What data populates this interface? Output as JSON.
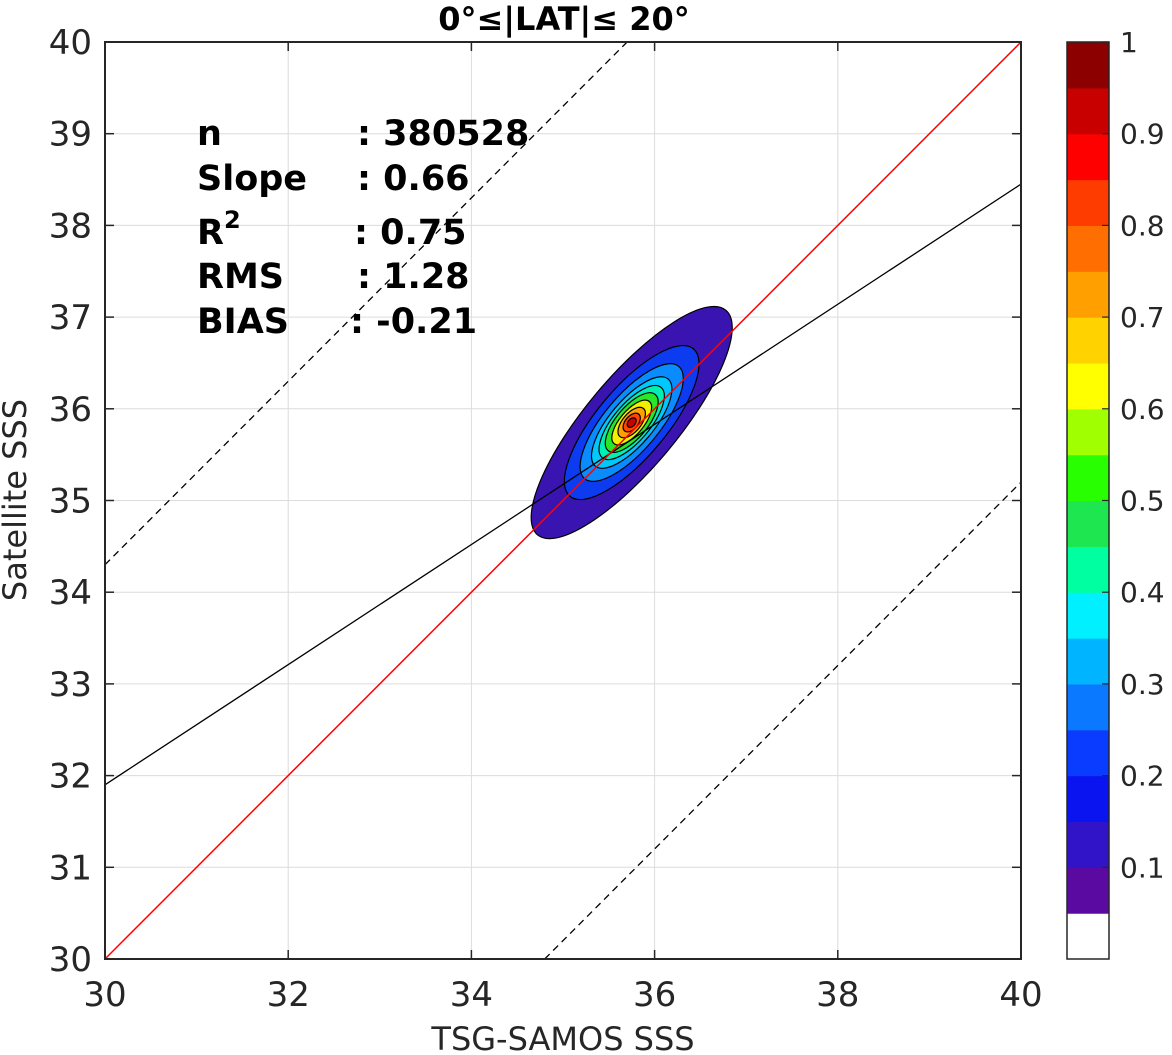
{
  "chart_data": {
    "type": "contour",
    "title": "0°≤|LAT|≤ 20°",
    "xlabel": "TSG-SAMOS SSS",
    "ylabel": "Satellite SSS",
    "xlim": [
      30,
      40
    ],
    "ylim": [
      30,
      40
    ],
    "xticks": [
      "30",
      "32",
      "34",
      "36",
      "38",
      "40"
    ],
    "yticks": [
      "30",
      "31",
      "32",
      "33",
      "34",
      "35",
      "36",
      "37",
      "38",
      "39",
      "40"
    ],
    "grid": true,
    "stats": {
      "n_label": "n",
      "n_value": ": 380528",
      "slope_label": "Slope",
      "slope_value": ": 0.66",
      "r2_label": "R",
      "r2_sup": "2",
      "r2_value": ": 0.75",
      "rms_label": "RMS",
      "rms_value": ": 1.28",
      "bias_label": "BIAS",
      "bias_value": ": -0.21"
    },
    "lines": {
      "identity": {
        "slope": 1,
        "intercept": 0,
        "color": "#ff0000"
      },
      "fit": {
        "x": [
          30,
          40
        ],
        "y": [
          31.9,
          38.45
        ],
        "color": "#000000"
      },
      "upper_bound": {
        "slope": 1,
        "intercept": 4.3,
        "style": "dashed"
      },
      "lower_bound": {
        "slope": 1,
        "intercept": -4.8,
        "style": "dashed"
      }
    },
    "density_peak": {
      "x": 35.75,
      "y": 35.85
    },
    "density_axis_angle_deg": 50,
    "contour_levels": [
      {
        "level": 0.05,
        "color": "#3a14b0",
        "semi_major": 1.6,
        "semi_minor": 0.5
      },
      {
        "level": 0.15,
        "color": "#0d3cf0",
        "semi_major": 1.05,
        "semi_minor": 0.38
      },
      {
        "level": 0.25,
        "color": "#0a8cff",
        "semi_major": 0.8,
        "semi_minor": 0.3
      },
      {
        "level": 0.35,
        "color": "#00c8ff",
        "semi_major": 0.62,
        "semi_minor": 0.24
      },
      {
        "level": 0.45,
        "color": "#00f0b4",
        "semi_major": 0.5,
        "semi_minor": 0.2
      },
      {
        "level": 0.55,
        "color": "#28e628",
        "semi_major": 0.4,
        "semi_minor": 0.17
      },
      {
        "level": 0.65,
        "color": "#f0f000",
        "semi_major": 0.3,
        "semi_minor": 0.13
      },
      {
        "level": 0.75,
        "color": "#ffa000",
        "semi_major": 0.2,
        "semi_minor": 0.1
      },
      {
        "level": 0.85,
        "color": "#ff4600",
        "semi_major": 0.12,
        "semi_minor": 0.07
      },
      {
        "level": 0.95,
        "color": "#c80000",
        "semi_major": 0.06,
        "semi_minor": 0.04
      }
    ],
    "colorbar": {
      "range": [
        0,
        1
      ],
      "ticks": [
        "0.1",
        "0.2",
        "0.3",
        "0.4",
        "0.5",
        "0.6",
        "0.7",
        "0.8",
        "0.9",
        "1"
      ],
      "tick_values": [
        0.1,
        0.2,
        0.3,
        0.4,
        0.5,
        0.6,
        0.7,
        0.8,
        0.9,
        1.0
      ],
      "colors": [
        "#ffffff",
        "#5a0aa0",
        "#3214c8",
        "#0a14f0",
        "#0a3cff",
        "#0a78ff",
        "#00b4ff",
        "#00f0ff",
        "#00ffa0",
        "#1ee650",
        "#28ff00",
        "#a0ff00",
        "#ffff00",
        "#ffd200",
        "#ffa000",
        "#ff6e00",
        "#ff3c00",
        "#ff0000",
        "#c80000",
        "#8c0000"
      ]
    }
  }
}
